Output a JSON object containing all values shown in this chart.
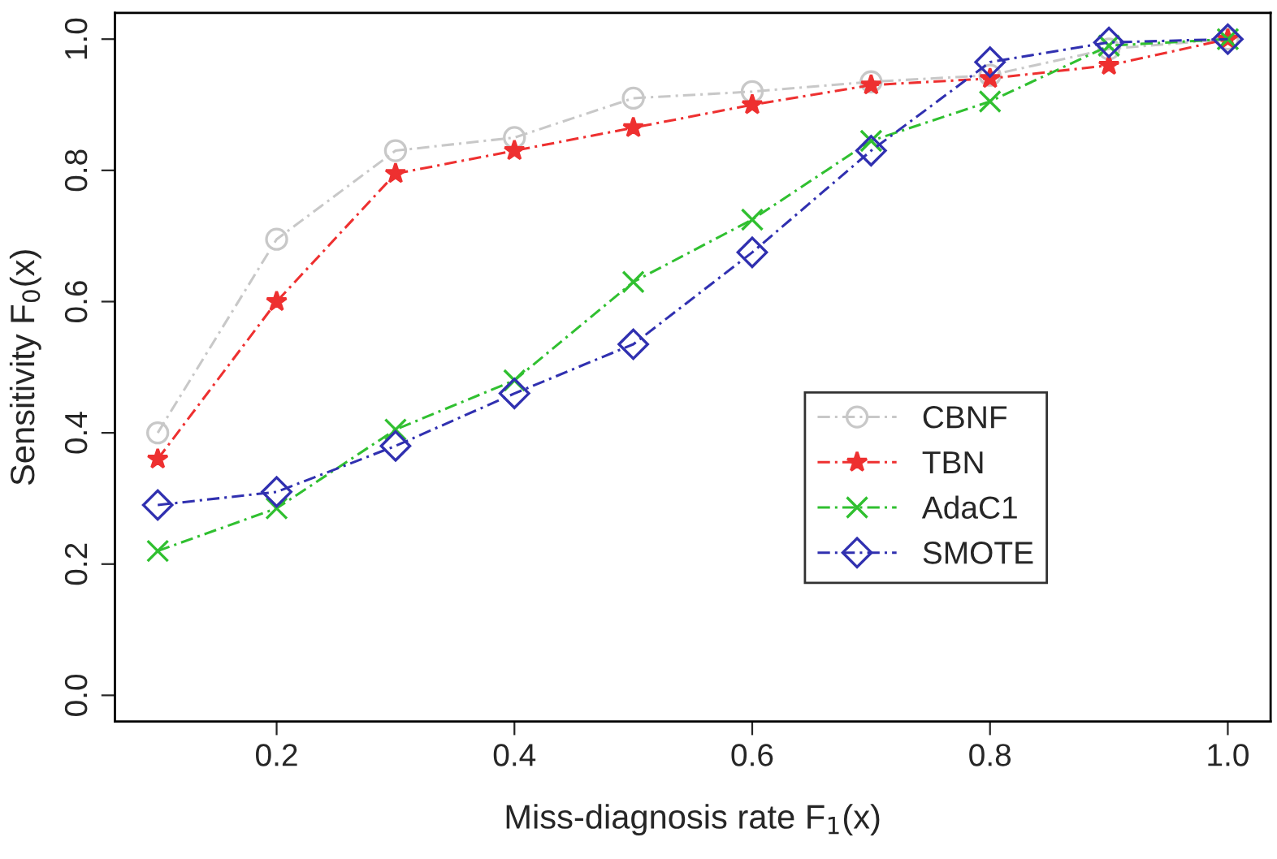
{
  "chart_data": {
    "type": "line",
    "xlabel": "Miss-diagnosis rate F$_{1}$(x)",
    "ylabel": "Sensitivity F$_{0}$(x)",
    "x": [
      0.1,
      0.2,
      0.3,
      0.4,
      0.5,
      0.6,
      0.7,
      0.8,
      0.9,
      1.0
    ],
    "series": [
      {
        "name": "CBNF",
        "color": "#c8c8c8",
        "marker": "circle",
        "values": [
          0.4,
          0.695,
          0.83,
          0.85,
          0.91,
          0.92,
          0.935,
          0.945,
          0.985,
          1.0
        ]
      },
      {
        "name": "TBN",
        "color": "#ee3030",
        "marker": "star",
        "values": [
          0.36,
          0.6,
          0.795,
          0.83,
          0.865,
          0.9,
          0.93,
          0.94,
          0.96,
          1.0
        ]
      },
      {
        "name": "AdaC1",
        "color": "#30c030",
        "marker": "cross",
        "values": [
          0.22,
          0.285,
          0.405,
          0.48,
          0.63,
          0.725,
          0.845,
          0.905,
          0.99,
          1.0
        ]
      },
      {
        "name": "SMOTE",
        "color": "#3030b0",
        "marker": "diamond",
        "values": [
          0.29,
          0.31,
          0.38,
          0.46,
          0.535,
          0.675,
          0.83,
          0.965,
          0.995,
          1.0
        ]
      }
    ],
    "line_style": "dashed",
    "legend": "right",
    "grid": false,
    "xlim": [
      0.064,
      1.036
    ],
    "ylim": [
      -0.04,
      1.04
    ],
    "xticks": [
      {
        "value": 0.2,
        "label": "0.2"
      },
      {
        "value": 0.4,
        "label": "0.4"
      },
      {
        "value": 0.6,
        "label": "0.6"
      },
      {
        "value": 0.8,
        "label": "0.8"
      },
      {
        "value": 1.0,
        "label": "1.0"
      }
    ],
    "yticks": [
      {
        "value": 0.0,
        "label": "0.0"
      },
      {
        "value": 0.2,
        "label": "0.2"
      },
      {
        "value": 0.4,
        "label": "0.4"
      },
      {
        "value": 0.6,
        "label": "0.6"
      },
      {
        "value": 0.8,
        "label": "0.8"
      },
      {
        "value": 1.0,
        "label": "1.0"
      }
    ]
  }
}
